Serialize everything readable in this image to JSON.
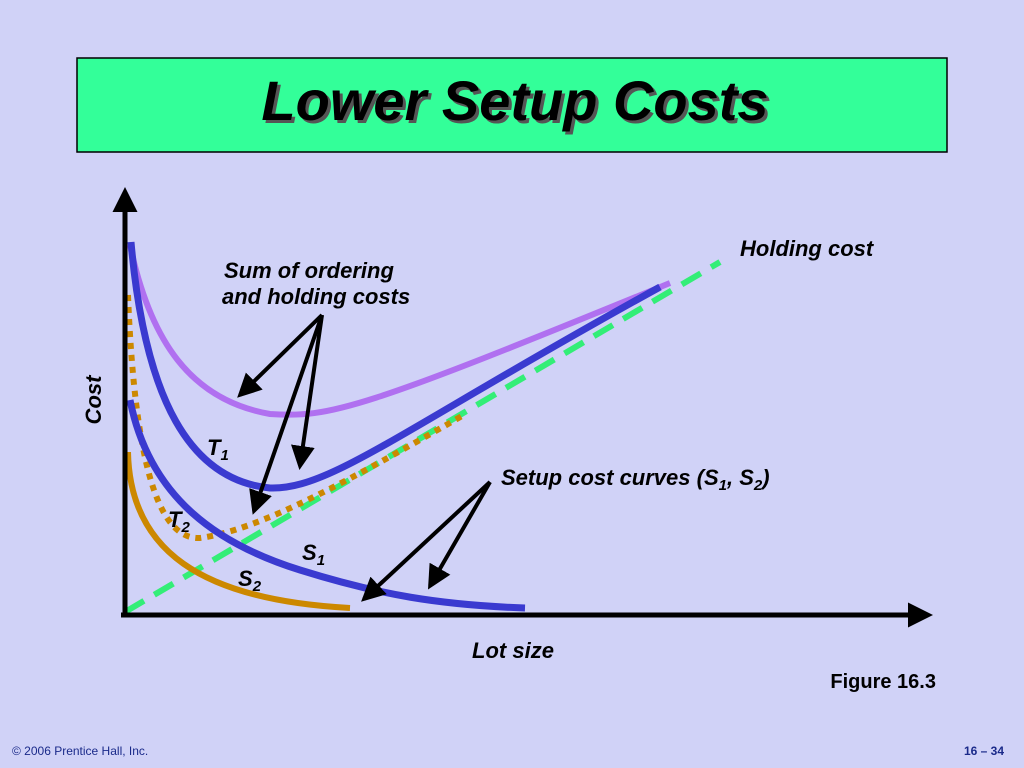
{
  "title": "Lower Setup Costs",
  "axes": {
    "y_label": "Cost",
    "x_label": "Lot size"
  },
  "labels": {
    "holding_cost": "Holding cost",
    "sum_costs": [
      "Sum of ordering",
      "and holding costs"
    ],
    "T1": [
      "T",
      "1"
    ],
    "T2": [
      "T",
      "2"
    ],
    "S1": [
      "S",
      "1"
    ],
    "S2": [
      "S",
      "2"
    ],
    "setup_cost_curves": [
      "Setup cost curves (",
      "S",
      "1",
      ", ",
      "S",
      "2",
      ")"
    ]
  },
  "figure": "Figure 16.3",
  "footer": {
    "copyright": "© 2006 Prentice Hall, Inc.",
    "page": "16 – 34"
  }
}
